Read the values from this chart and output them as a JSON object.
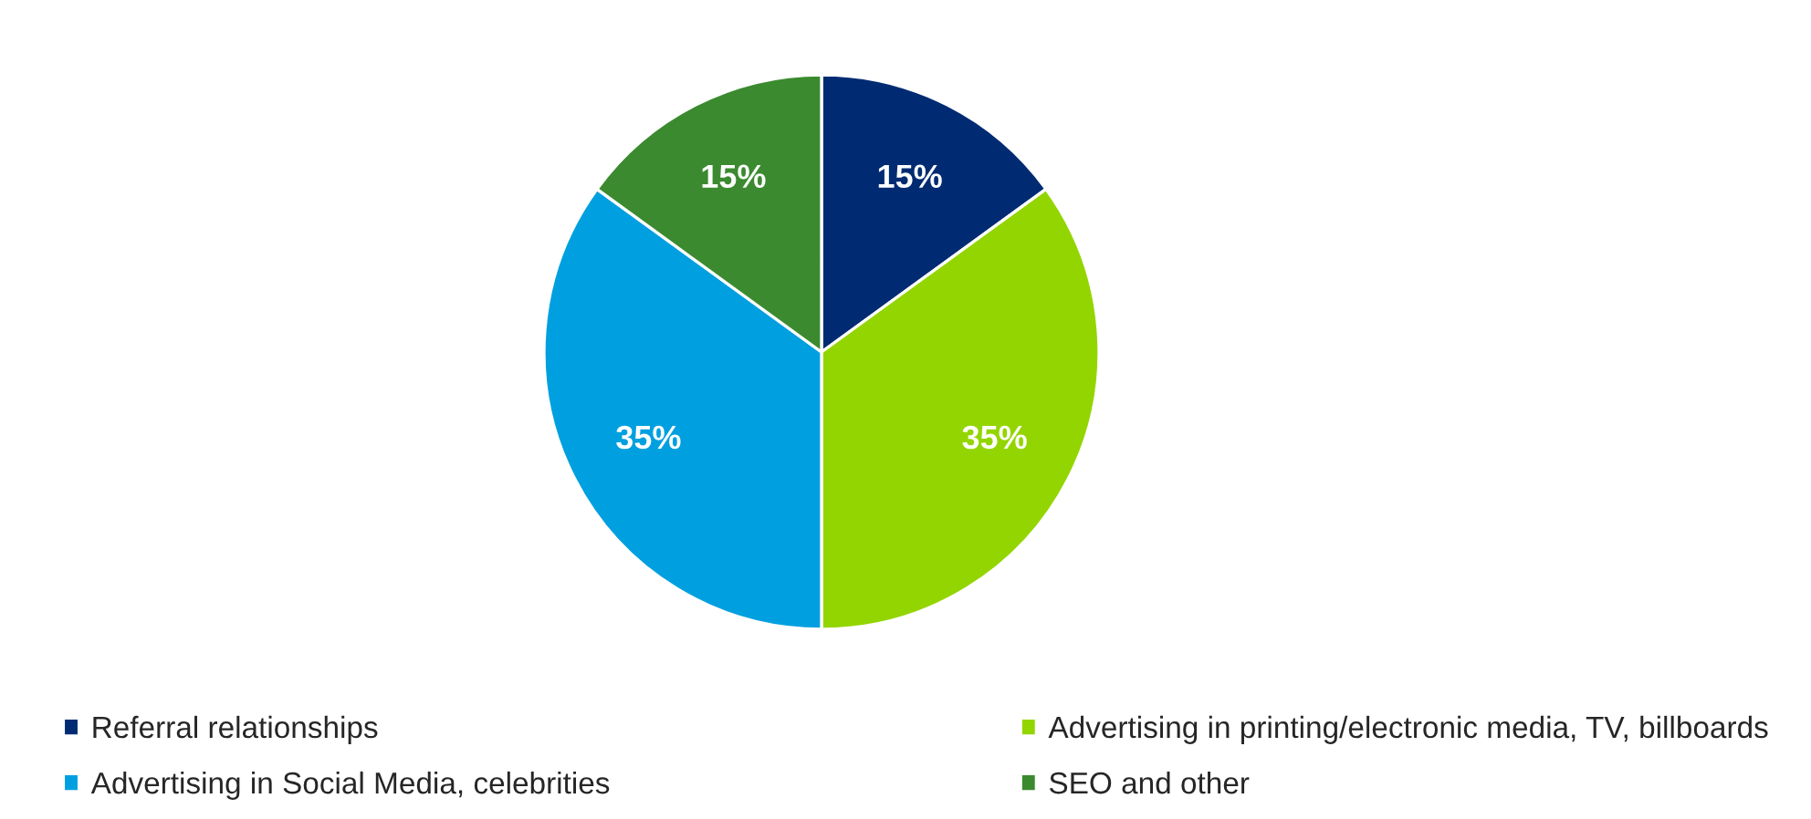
{
  "chart_data": {
    "type": "pie",
    "categories": [
      "Referral relationships",
      "Advertising in printing/electronic media, TV, billboards",
      "Advertising in Social Media, celebrities",
      "SEO and other"
    ],
    "values": [
      15,
      35,
      35,
      15
    ],
    "colors": [
      "#002b72",
      "#93d500",
      "#00a0e0",
      "#3b8a2f"
    ],
    "value_labels": [
      "15%",
      "35%",
      "35%",
      "15%"
    ],
    "legend": "bottom"
  }
}
